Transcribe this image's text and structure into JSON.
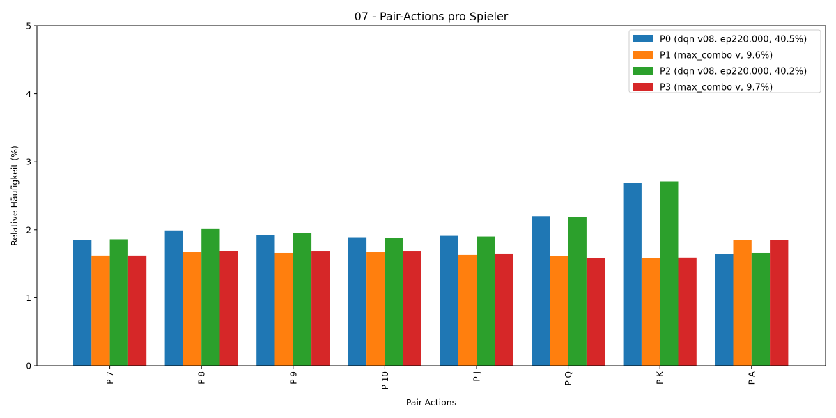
{
  "chart_data": {
    "type": "bar",
    "title": "07 - Pair-Actions pro Spieler",
    "xlabel": "Pair-Actions",
    "ylabel": "Relative Häufigkeit (%)",
    "ylim": [
      0,
      5
    ],
    "yticks": [
      "0",
      "1",
      "2",
      "3",
      "4",
      "5"
    ],
    "categories": [
      "P 7",
      "P 8",
      "P 9",
      "P 10",
      "P J",
      "P Q",
      "P K",
      "P A"
    ],
    "grid": false,
    "legend_position": "top-right",
    "series": [
      {
        "name": "P0 (dqn v08. ep220.000, 40.5%)",
        "color": "#1f77b4",
        "values": [
          1.85,
          1.99,
          1.92,
          1.89,
          1.91,
          2.2,
          2.69,
          1.64
        ]
      },
      {
        "name": "P1 (max_combo v, 9.6%)",
        "color": "#ff7f0e",
        "values": [
          1.62,
          1.67,
          1.66,
          1.67,
          1.63,
          1.61,
          1.58,
          1.85
        ]
      },
      {
        "name": "P2 (dqn v08. ep220.000, 40.2%)",
        "color": "#2ca02c",
        "values": [
          1.86,
          2.02,
          1.95,
          1.88,
          1.9,
          2.19,
          2.71,
          1.66
        ]
      },
      {
        "name": "P3 (max_combo v, 9.7%)",
        "color": "#d62728",
        "values": [
          1.62,
          1.69,
          1.68,
          1.68,
          1.65,
          1.58,
          1.59,
          1.85
        ]
      }
    ]
  }
}
